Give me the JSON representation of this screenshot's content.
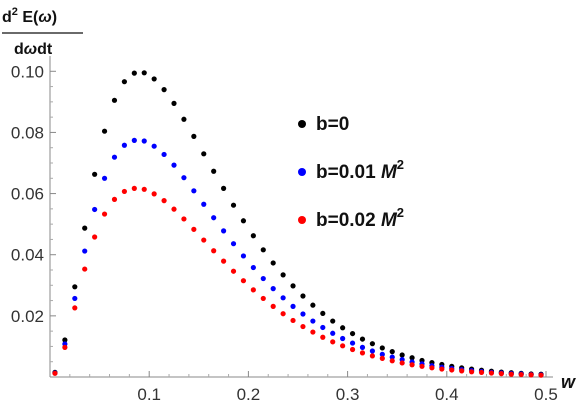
{
  "chart_data": {
    "type": "scatter",
    "ylabel_numerator": "d² E(ω)",
    "ylabel_numerator_parts": {
      "d": "d",
      "sup": "2",
      "rest": " E(",
      "omega": "ω",
      "close": ")"
    },
    "ylabel_denominator": "dωdt",
    "ylabel_denominator_parts": {
      "d1": "d",
      "omega": "ω",
      "dt": "dt"
    },
    "xlabel": "w",
    "xlim": [
      0,
      0.5
    ],
    "ylim": [
      0,
      0.105
    ],
    "x_ticks": [
      0.1,
      0.2,
      0.3,
      0.4,
      0.5
    ],
    "x_tick_labels": [
      "0.1",
      "0.2",
      "0.3",
      "0.4",
      "0.5"
    ],
    "y_ticks": [
      0.02,
      0.04,
      0.06,
      0.08,
      0.1
    ],
    "y_tick_labels": [
      "0.02",
      "0.04",
      "0.06",
      "0.08",
      "0.10"
    ],
    "grid": false,
    "legend_position": "right",
    "x": [
      0.005,
      0.015,
      0.025,
      0.035,
      0.045,
      0.055,
      0.065,
      0.075,
      0.085,
      0.095,
      0.105,
      0.115,
      0.125,
      0.135,
      0.145,
      0.155,
      0.165,
      0.175,
      0.185,
      0.195,
      0.205,
      0.215,
      0.225,
      0.235,
      0.245,
      0.255,
      0.265,
      0.275,
      0.285,
      0.295,
      0.305,
      0.315,
      0.325,
      0.335,
      0.345,
      0.355,
      0.365,
      0.375,
      0.385,
      0.395,
      0.405,
      0.415,
      0.425,
      0.435,
      0.445,
      0.455,
      0.465,
      0.475,
      0.485,
      0.495
    ],
    "series": [
      {
        "name": "b=0",
        "label_main": "b=0",
        "label_unit": "",
        "label_sup": "",
        "color": "#000000",
        "values": [
          0.0015,
          0.0121,
          0.0295,
          0.0487,
          0.0663,
          0.0804,
          0.0905,
          0.0966,
          0.0994,
          0.0995,
          0.0975,
          0.094,
          0.0895,
          0.0843,
          0.0787,
          0.073,
          0.0673,
          0.0617,
          0.0562,
          0.0511,
          0.0462,
          0.0416,
          0.0373,
          0.0334,
          0.0298,
          0.0265,
          0.0235,
          0.0208,
          0.0183,
          0.0161,
          0.0142,
          0.0124,
          0.0109,
          0.0095,
          0.0083,
          0.0072,
          0.0063,
          0.0054,
          0.0047,
          0.0041,
          0.0035,
          0.003,
          0.0026,
          0.0022,
          0.0019,
          0.0016,
          0.0014,
          0.0012,
          0.001,
          0.0009
        ]
      },
      {
        "name": "b=0.01 M²",
        "label_main": "b=0.01 ",
        "label_unit": "M",
        "label_sup": "2",
        "color": "#0000ff",
        "values": [
          0.0013,
          0.0108,
          0.0257,
          0.0412,
          0.0548,
          0.065,
          0.0719,
          0.0758,
          0.0774,
          0.0772,
          0.0755,
          0.0728,
          0.0693,
          0.0652,
          0.0609,
          0.0565,
          0.0521,
          0.0478,
          0.0436,
          0.0396,
          0.0358,
          0.0322,
          0.0289,
          0.0259,
          0.0231,
          0.0206,
          0.0183,
          0.0162,
          0.0143,
          0.0126,
          0.0111,
          0.0097,
          0.0085,
          0.0074,
          0.0065,
          0.0057,
          0.0049,
          0.0043,
          0.0037,
          0.0032,
          0.0028,
          0.0024,
          0.0021,
          0.0018,
          0.0015,
          0.0013,
          0.0011,
          0.001,
          0.0008,
          0.0007
        ]
      },
      {
        "name": "b=0.02 M²",
        "label_main": "b=0.02 ",
        "label_unit": "M",
        "label_sup": "2",
        "color": "#ff0000",
        "values": [
          0.0012,
          0.0097,
          0.0226,
          0.0353,
          0.0458,
          0.0533,
          0.0581,
          0.0607,
          0.0617,
          0.0614,
          0.0599,
          0.0577,
          0.0549,
          0.0517,
          0.0483,
          0.0448,
          0.0413,
          0.0379,
          0.0346,
          0.0315,
          0.0285,
          0.0257,
          0.0231,
          0.0207,
          0.0185,
          0.0165,
          0.0147,
          0.013,
          0.0115,
          0.0102,
          0.009,
          0.0079,
          0.0069,
          0.0061,
          0.0053,
          0.0046,
          0.004,
          0.0035,
          0.003,
          0.0026,
          0.0023,
          0.002,
          0.0017,
          0.0015,
          0.0013,
          0.0011,
          0.0009,
          0.0008,
          0.0007,
          0.0006
        ]
      }
    ]
  }
}
